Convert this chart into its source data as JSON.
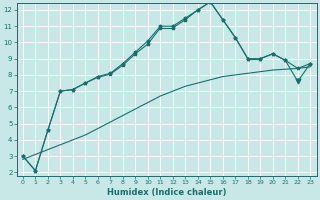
{
  "xlabel": "Humidex (Indice chaleur)",
  "bg_color": "#c8e8e8",
  "line_color": "#1a6e6e",
  "grid_color": "#ffffff",
  "xlim": [
    -0.5,
    23.5
  ],
  "ylim": [
    1.8,
    12.4
  ],
  "yticks": [
    2,
    3,
    4,
    5,
    6,
    7,
    8,
    9,
    10,
    11,
    12
  ],
  "xticks": [
    0,
    1,
    2,
    3,
    4,
    5,
    6,
    7,
    8,
    9,
    10,
    11,
    12,
    13,
    14,
    15,
    16,
    17,
    18,
    19,
    20,
    21,
    22,
    23
  ],
  "line1_x": [
    0,
    1,
    2,
    3,
    4,
    5,
    6,
    7,
    8,
    9,
    10,
    11,
    12,
    13,
    14,
    15,
    16,
    17,
    18,
    19,
    20,
    21,
    22,
    23
  ],
  "line1_y": [
    3.0,
    2.1,
    4.6,
    7.0,
    7.1,
    7.5,
    7.9,
    8.1,
    8.7,
    9.4,
    10.1,
    11.0,
    11.0,
    11.5,
    12.0,
    12.5,
    11.4,
    10.3,
    9.0,
    9.0,
    9.3,
    8.9,
    8.4,
    8.7
  ],
  "line2_x": [
    0,
    1,
    2,
    3,
    4,
    5,
    6,
    7,
    8,
    9,
    10,
    11,
    12,
    13,
    14,
    15,
    16,
    17,
    18,
    19,
    20,
    21,
    22,
    23
  ],
  "line2_y": [
    2.8,
    3.1,
    3.4,
    3.7,
    4.0,
    4.3,
    4.7,
    5.1,
    5.5,
    5.9,
    6.3,
    6.7,
    7.0,
    7.3,
    7.5,
    7.7,
    7.9,
    8.0,
    8.1,
    8.2,
    8.3,
    8.35,
    8.4,
    8.5
  ],
  "line3_x": [
    0,
    1,
    2,
    3,
    4,
    5,
    6,
    7,
    8,
    9,
    10,
    11,
    12,
    13,
    14,
    15,
    16,
    17,
    18,
    19,
    20,
    21,
    22,
    23
  ],
  "line3_y": [
    3.0,
    2.1,
    4.6,
    7.0,
    7.1,
    7.5,
    7.85,
    8.05,
    8.6,
    9.3,
    9.9,
    10.9,
    10.9,
    11.4,
    12.0,
    12.5,
    11.4,
    10.3,
    9.0,
    9.0,
    9.3,
    8.9,
    7.6,
    8.7
  ],
  "line3_vtriangle_x": 22,
  "marker_size": 2.5,
  "lw": 0.8
}
